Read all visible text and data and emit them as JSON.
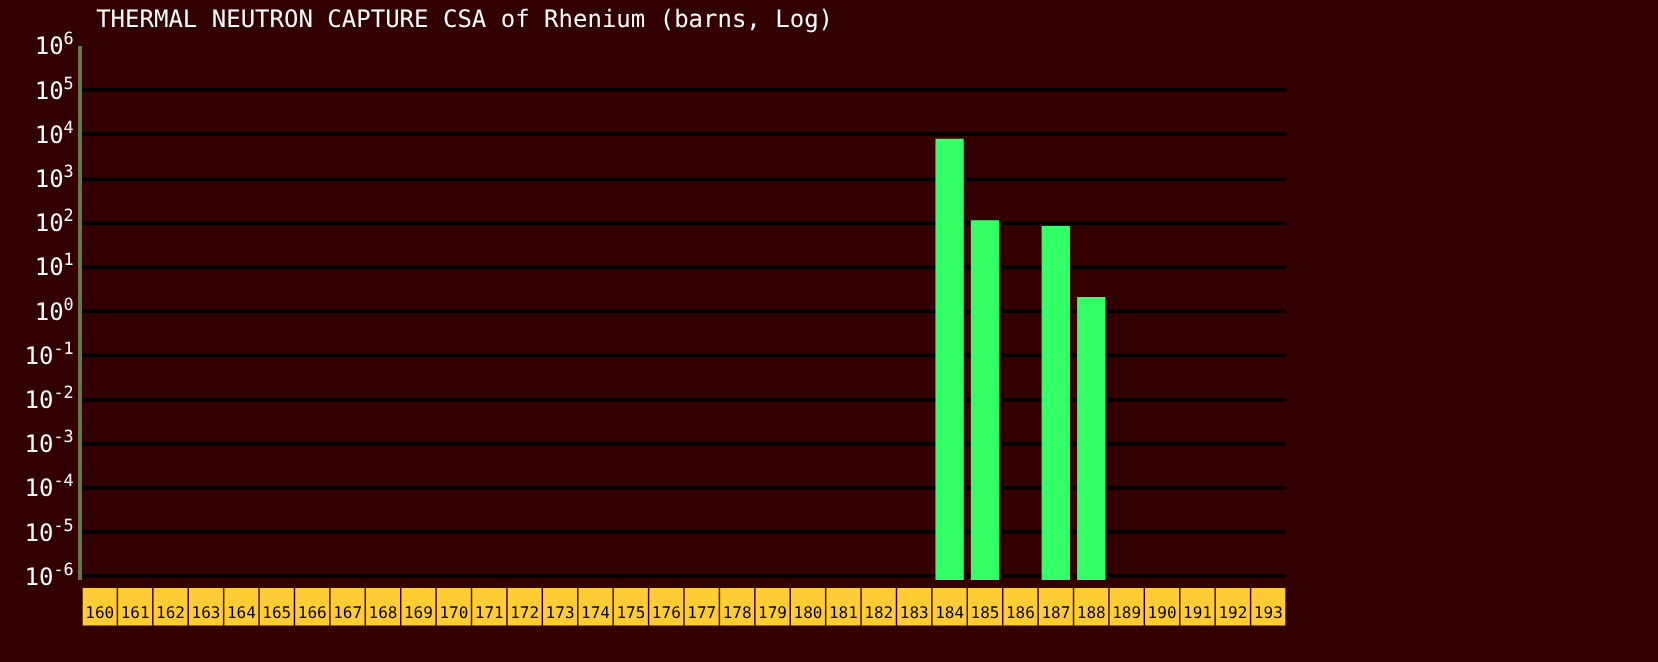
{
  "chart_data": {
    "type": "bar",
    "title": "THERMAL NEUTRON CAPTURE CSA of Rhenium (barns, Log)",
    "categories": [
      "160",
      "161",
      "162",
      "163",
      "164",
      "165",
      "166",
      "167",
      "168",
      "169",
      "170",
      "171",
      "172",
      "173",
      "174",
      "175",
      "176",
      "177",
      "178",
      "179",
      "180",
      "181",
      "182",
      "183",
      "184",
      "185",
      "186",
      "187",
      "188",
      "189",
      "190",
      "191",
      "192",
      "193"
    ],
    "values": [
      null,
      null,
      null,
      null,
      null,
      null,
      null,
      null,
      null,
      null,
      null,
      null,
      null,
      null,
      null,
      null,
      null,
      null,
      null,
      null,
      null,
      null,
      null,
      null,
      8000,
      115,
      null,
      85,
      2.1,
      null,
      null,
      null,
      null,
      null
    ],
    "color": "#33ff66",
    "log": true,
    "ylim": [
      1e-06,
      1000000.0
    ],
    "yticks": [
      {
        "value": 1e-06,
        "label": "10$^{-6}$"
      },
      {
        "value": 1e-05,
        "label": "10$^{-5}$"
      },
      {
        "value": 0.0001,
        "label": "10$^{-4}$"
      },
      {
        "value": 0.001,
        "label": "10$^{-3}$"
      },
      {
        "value": 0.01,
        "label": "10$^{-2}$"
      },
      {
        "value": 0.1,
        "label": "10$^{-1}$"
      },
      {
        "value": 1,
        "label": "10$^{0}$"
      },
      {
        "value": 10,
        "label": "10$^{1}$"
      },
      {
        "value": 100,
        "label": "10$^{2}$"
      },
      {
        "value": 1000,
        "label": "10$^{3}$"
      },
      {
        "value": 10000,
        "label": "10$^{4}$"
      },
      {
        "value": 100000,
        "label": "10$^{5}$"
      },
      {
        "value": 1000000,
        "label": "10$^{6}$"
      }
    ],
    "grid": "y"
  }
}
